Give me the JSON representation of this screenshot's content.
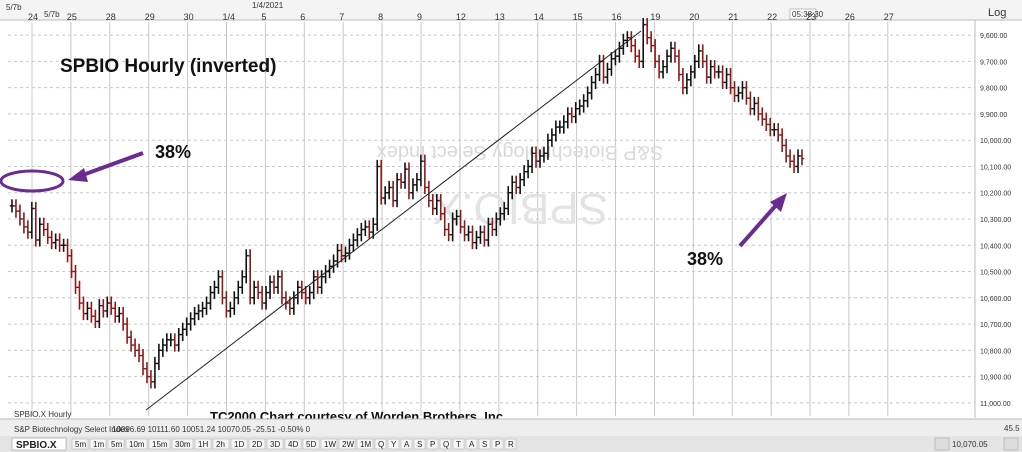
{
  "title": "SPBIO Hourly (inverted)",
  "credit": "TC2000 Chart courtesy of Worden Brothers, Inc.",
  "annotations": {
    "left_pct": "38%",
    "right_pct": "38%"
  },
  "watermark": {
    "symbol": "SPBIO.X",
    "name": "S&P Biotechnology Select Index"
  },
  "header": {
    "log_label": "Log",
    "top_left_labels": [
      "5/7b",
      "5/7b"
    ],
    "month_label": "1/4/2021",
    "time_box": "05:38:30"
  },
  "footer": {
    "symbol": "SPBIO.X",
    "series_label": "SPBIO.X Hourly",
    "index_label": "S&P Biotechnology Select Index",
    "ohlc_text": "10096.69  10111.60  10051.24  10070.05  -25.51  -0.50%  0",
    "price_readout": "10,070.05",
    "zoom_label": "45.5",
    "timeframes": [
      "5m",
      "1m",
      "5m",
      "10m",
      "15m",
      "30m",
      "1H",
      "2h",
      "1D",
      "2D",
      "3D",
      "4D",
      "5D",
      "1W",
      "2W",
      "1M",
      "Q",
      "Y",
      "A",
      "S",
      "P",
      "Q",
      "T",
      "A",
      "S",
      "P",
      "R"
    ]
  },
  "price_axis_labels": [
    "9,600.00",
    "9,700.00",
    "9,800.00",
    "9,900.00",
    "10,000.00",
    "10,100.00",
    "10,200.00",
    "10,300.00",
    "10,400.00",
    "10,500.00",
    "10,600.00",
    "10,700.00",
    "10,800.00",
    "10,900.00",
    "11,000.00"
  ],
  "colors": {
    "up": "#8b1a1a",
    "down": "#111111",
    "trend": "#222222",
    "arrow": "#6a2c91",
    "grid": "#c8c8c8"
  },
  "chart_data": {
    "type": "candlestick",
    "title": "SPBIO Hourly (inverted)",
    "inverted": true,
    "scale": "log",
    "x_tick_labels": [
      "24",
      "25",
      "28",
      "29",
      "30",
      "1/4",
      "5",
      "6",
      "7",
      "8",
      "9",
      "12",
      "13",
      "14",
      "15",
      "16",
      "19",
      "20",
      "21",
      "22",
      "23",
      "26",
      "27"
    ],
    "y_range": [
      9550,
      11050
    ],
    "retracement_level": "38%",
    "trendline": {
      "from_date": "Dec 28",
      "to_date": "Jan 15"
    },
    "series": [
      {
        "name": "SPBIO.X",
        "close": [
          10250,
          10270,
          10300,
          10330,
          10350,
          10260,
          10380,
          10320,
          10340,
          10370,
          10390,
          10380,
          10400,
          10400,
          10440,
          10500,
          10560,
          10620,
          10660,
          10640,
          10670,
          10690,
          10630,
          10650,
          10620,
          10640,
          10670,
          10660,
          10700,
          10750,
          10780,
          10800,
          10820,
          10870,
          10900,
          10920,
          10850,
          10800,
          10780,
          10760,
          10760,
          10780,
          10740,
          10720,
          10700,
          10680,
          10660,
          10650,
          10640,
          10620,
          10580,
          10560,
          10520,
          10600,
          10650,
          10640,
          10600,
          10560,
          10520,
          10440,
          10600,
          10560,
          10580,
          10620,
          10580,
          10540,
          10560,
          10520,
          10600,
          10620,
          10640,
          10600,
          10560,
          10580,
          10600,
          10580,
          10520,
          10560,
          10520,
          10500,
          10480,
          10460,
          10420,
          10440,
          10430,
          10400,
          10380,
          10360,
          10340,
          10330,
          10350,
          10320,
          10100,
          10220,
          10200,
          10180,
          10230,
          10150,
          10160,
          10110,
          10200,
          10170,
          10150,
          10080,
          10180,
          10230,
          10260,
          10230,
          10280,
          10340,
          10360,
          10300,
          10290,
          10330,
          10360,
          10350,
          10390,
          10370,
          10350,
          10380,
          10320,
          10340,
          10300,
          10280,
          10260,
          10200,
          10160,
          10180,
          10150,
          10120,
          10100,
          10050,
          10080,
          10060,
          10050,
          10000,
          9980,
          9950,
          9950,
          9930,
          9900,
          9910,
          9880,
          9870,
          9850,
          9820,
          9780,
          9750,
          9700,
          9760,
          9730,
          9690,
          9680,
          9650,
          9620,
          9610,
          9640,
          9680,
          9700,
          9560,
          9610,
          9640,
          9700,
          9740,
          9720,
          9680,
          9650,
          9680,
          9750,
          9800,
          9770,
          9740,
          9700,
          9660,
          9700,
          9760,
          9720,
          9740,
          9740,
          9780,
          9750,
          9800,
          9830,
          9820,
          9800,
          9840,
          9880,
          9860,
          9900,
          9920,
          9940,
          9960,
          9960,
          9980,
          10020,
          10060,
          10080,
          10100,
          10060,
          10070
        ]
      }
    ]
  }
}
